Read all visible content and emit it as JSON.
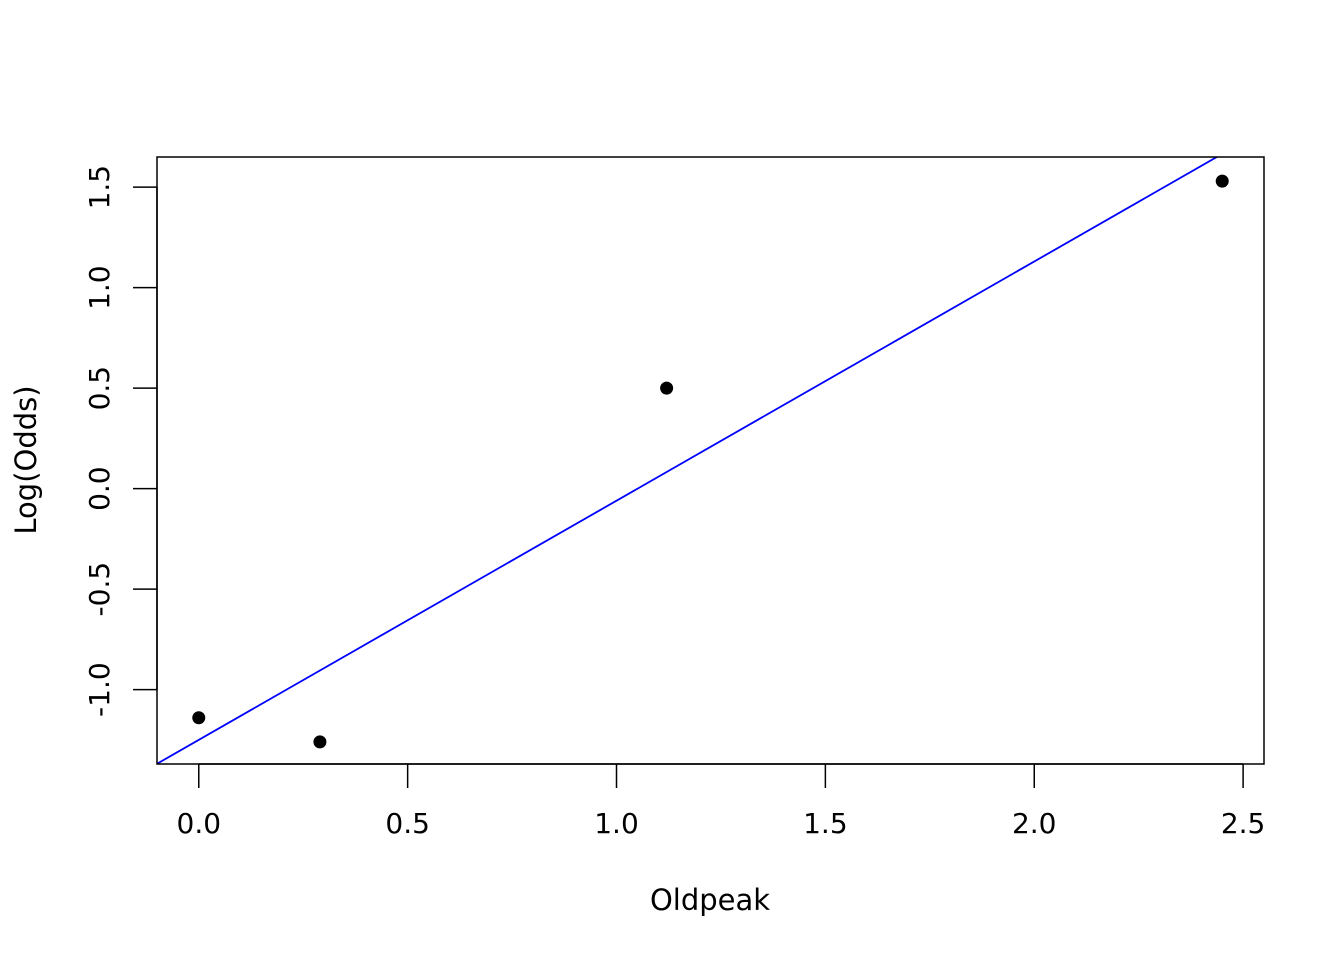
{
  "chart_data": {
    "type": "scatter",
    "title": "",
    "xlabel": "Oldpeak",
    "ylabel": "Log(Odds)",
    "xlim": [
      -0.1,
      2.55
    ],
    "ylim": [
      -1.37,
      1.65
    ],
    "x_ticks": [
      {
        "value": 0.0,
        "label": "0.0"
      },
      {
        "value": 0.5,
        "label": "0.5"
      },
      {
        "value": 1.0,
        "label": "1.0"
      },
      {
        "value": 1.5,
        "label": "1.5"
      },
      {
        "value": 2.0,
        "label": "2.0"
      },
      {
        "value": 2.5,
        "label": "2.5"
      }
    ],
    "y_ticks": [
      {
        "value": -1.0,
        "label": "-1.0"
      },
      {
        "value": -0.5,
        "label": "-0.5"
      },
      {
        "value": 0.0,
        "label": "0.0"
      },
      {
        "value": 0.5,
        "label": "0.5"
      },
      {
        "value": 1.0,
        "label": "1.0"
      },
      {
        "value": 1.5,
        "label": "1.5"
      }
    ],
    "points": [
      {
        "x": 0.0,
        "y": -1.14
      },
      {
        "x": 0.29,
        "y": -1.26
      },
      {
        "x": 1.12,
        "y": 0.5
      },
      {
        "x": 2.45,
        "y": 1.53
      }
    ],
    "fit_line": {
      "intercept": -1.25,
      "slope": 1.19,
      "color": "#0000ff"
    },
    "point_color": "#000000",
    "grid": false,
    "legend": "none"
  }
}
